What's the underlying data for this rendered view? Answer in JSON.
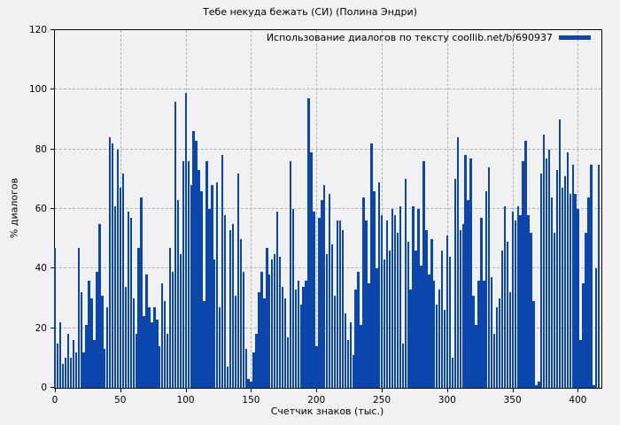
{
  "page": {
    "background": "#f1f1f1",
    "text_color": "#000000"
  },
  "chart_data": {
    "type": "bar",
    "style": "impulses",
    "title": "Тебе некуда бежать (СИ) (Полина Эндри)",
    "xlabel": "Счетчик знаков (тыс.)",
    "ylabel": "% диалогов",
    "legend": {
      "label": "Использование диалогов по тексту coollib.net/b/690937",
      "position": "top-right-inside",
      "swatch_color": "#0b46ad"
    },
    "xlim": [
      0,
      418
    ],
    "ylim": [
      0,
      120
    ],
    "xticks": [
      0,
      50,
      100,
      150,
      200,
      250,
      300,
      350,
      400
    ],
    "yticks": [
      0,
      20,
      40,
      60,
      80,
      100,
      120
    ],
    "grid": true,
    "bar_color": "#0b46ad",
    "grid_color": "#b0b0b0",
    "axis_color": "#000000",
    "x_start": 0,
    "x_step": 2,
    "values": [
      47,
      15,
      22,
      8,
      10,
      18,
      10,
      16,
      12,
      47,
      32,
      12,
      21,
      36,
      30,
      16,
      39,
      55,
      31,
      13,
      27,
      84,
      82,
      61,
      80,
      67,
      72,
      34,
      59,
      57,
      30,
      18,
      47,
      64,
      24,
      38,
      27,
      22,
      27,
      23,
      14,
      35,
      29,
      18,
      47,
      39,
      96,
      63,
      45,
      76,
      99,
      76,
      68,
      86,
      83,
      73,
      66,
      29,
      76,
      60,
      68,
      43,
      69,
      27,
      78,
      58,
      7,
      53,
      55,
      31,
      72,
      50,
      39,
      13,
      3,
      2,
      12,
      18,
      32,
      39,
      30,
      47,
      38,
      43,
      45,
      59,
      44,
      34,
      30,
      17,
      76,
      60,
      33,
      36,
      28,
      34,
      36,
      97,
      79,
      59,
      14,
      57,
      63,
      68,
      45,
      65,
      48,
      31,
      56,
      56,
      53,
      25,
      16,
      22,
      11,
      33,
      39,
      21,
      64,
      56,
      35,
      82,
      66,
      40,
      69,
      58,
      43,
      56,
      46,
      60,
      58,
      52,
      61,
      15,
      70,
      49,
      33,
      61,
      46,
      60,
      41,
      76,
      53,
      38,
      50,
      36,
      28,
      33,
      46,
      26,
      51,
      44,
      10,
      70,
      84,
      53,
      55,
      78,
      63,
      77,
      31,
      21,
      36,
      57,
      36,
      66,
      74,
      37,
      18,
      27,
      30,
      46,
      61,
      49,
      32,
      59,
      56,
      61,
      58,
      76,
      83,
      58,
      52,
      29,
      1,
      2,
      72,
      85,
      77,
      80,
      64,
      52,
      73,
      90,
      67,
      71,
      79,
      65,
      75,
      65,
      60,
      16,
      35,
      52,
      64,
      75,
      1,
      40,
      75
    ]
  }
}
